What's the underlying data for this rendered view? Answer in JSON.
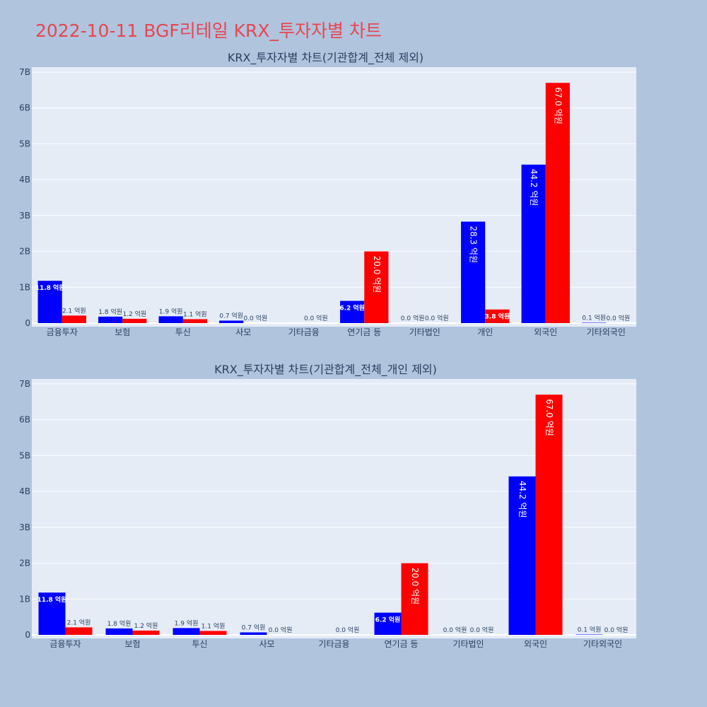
{
  "title": "2022-10-11 BGF리테일 KRX_투자자별 차트",
  "colors": {
    "buy": "#0000ff",
    "sell": "#ff0000",
    "plot_bg": "#e5ecf6",
    "page_bg": "#b0c4de",
    "title": "#e8454f"
  },
  "chart_data": [
    {
      "type": "bar",
      "title": "KRX_투자자별 차트(기관합계_전체 제외)",
      "categories": [
        "금융투자",
        "보험",
        "투신",
        "사모",
        "기타금융",
        "연기금 등",
        "기타법인",
        "개인",
        "외국인",
        "기타외국인"
      ],
      "series": [
        {
          "color": "#0000ff",
          "values": [
            1.18,
            0.18,
            0.19,
            0.07,
            0,
            0.62,
            0,
            2.83,
            4.42,
            0.01
          ],
          "labels": [
            "11.8 억원",
            "1.8 억원",
            "1.9 억원",
            "0.7 억원",
            "",
            "6.2 억원",
            "0.0 억원",
            "28.3 억원",
            "44.2 억원",
            "0.1 억원"
          ]
        },
        {
          "color": "#ff0000",
          "values": [
            0.21,
            0.12,
            0.11,
            0,
            0,
            2.0,
            0,
            0.38,
            6.7,
            0
          ],
          "labels": [
            "2.1 억원",
            "1.2 억원",
            "1.1 억원",
            "0.0 억원",
            "0.0 억원",
            "20.0 억원",
            "0.0 억원",
            "3.8 억원",
            "67.0 억원",
            "0.0 억원"
          ]
        }
      ],
      "ylim": [
        0,
        7
      ],
      "yticks": [
        "0",
        "1B",
        "2B",
        "3B",
        "4B",
        "5B",
        "6B",
        "7B"
      ],
      "grid": true
    },
    {
      "type": "bar",
      "title": "KRX_투자자별 차트(기관합계_전체_개인 제외)",
      "categories": [
        "금융투자",
        "보험",
        "투신",
        "사모",
        "기타금융",
        "연기금 등",
        "기타법인",
        "외국인",
        "기타외국인"
      ],
      "series": [
        {
          "color": "#0000ff",
          "values": [
            1.18,
            0.18,
            0.19,
            0.07,
            0,
            0.62,
            0,
            4.42,
            0.01
          ],
          "labels": [
            "11.8 억원",
            "1.8 억원",
            "1.9 억원",
            "0.7 억원",
            "",
            "6.2 억원",
            "0.0 억원",
            "44.2 억원",
            "0.1 억원"
          ]
        },
        {
          "color": "#ff0000",
          "values": [
            0.21,
            0.12,
            0.11,
            0,
            0,
            2.0,
            0,
            6.7,
            0
          ],
          "labels": [
            "2.1 억원",
            "1.2 억원",
            "1.1 억원",
            "0.0 억원",
            "0.0 억원",
            "20.0 억원",
            "0.0 억원",
            "67.0 억원",
            "0.0 억원"
          ]
        }
      ],
      "ylim": [
        0,
        7
      ],
      "yticks": [
        "0",
        "1B",
        "2B",
        "3B",
        "4B",
        "5B",
        "6B",
        "7B"
      ],
      "grid": true
    }
  ]
}
